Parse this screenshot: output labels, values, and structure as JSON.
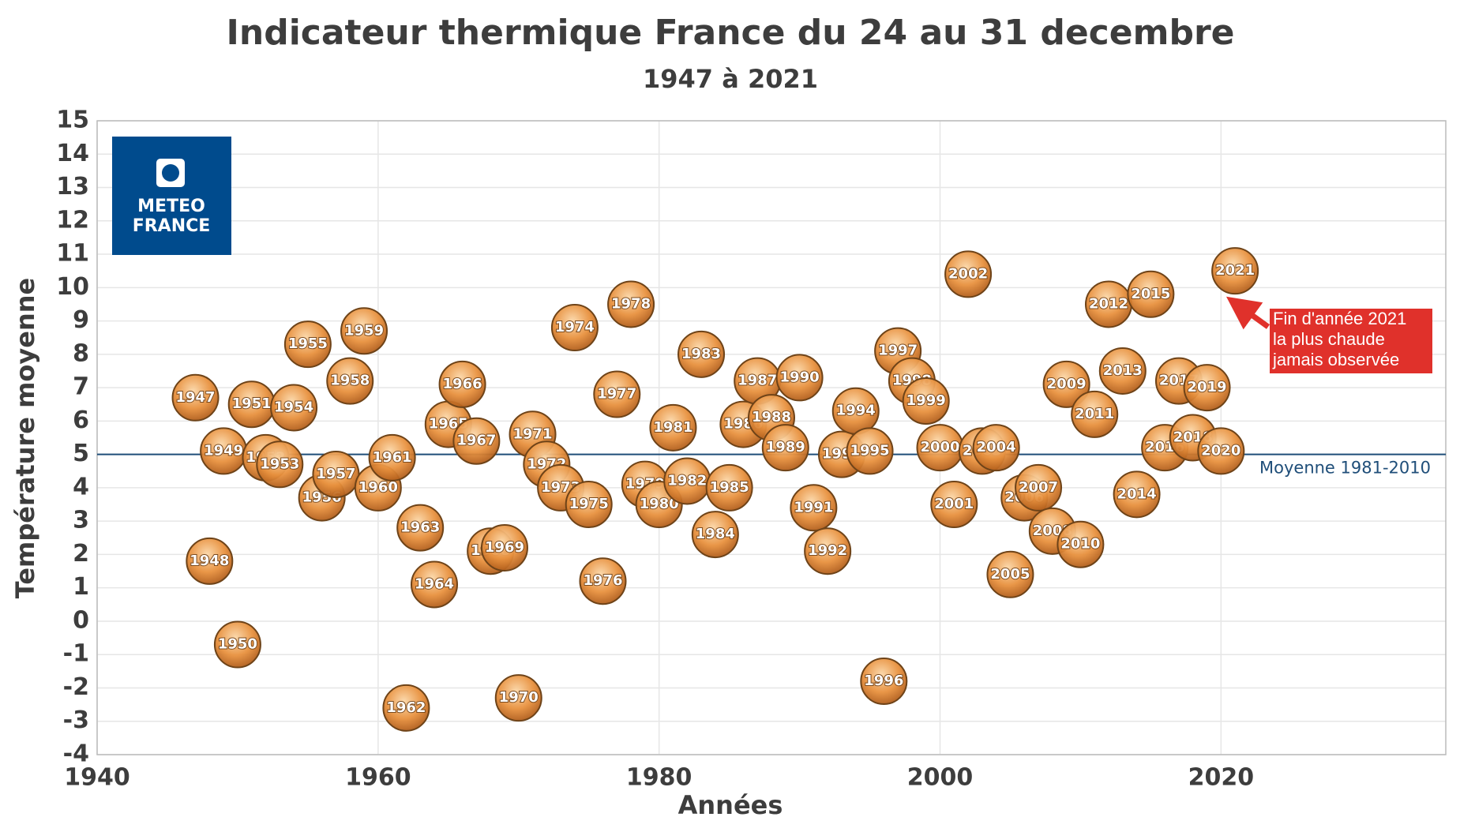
{
  "chart_data": {
    "type": "bubble",
    "title": "Indicateur thermique France du 24 au 31 decembre",
    "subtitle": "1947 à 2021",
    "x_label": "Années",
    "y_label": "Température moyenne",
    "x": [
      1947,
      1948,
      1949,
      1950,
      1951,
      1952,
      1953,
      1954,
      1955,
      1956,
      1957,
      1958,
      1959,
      1960,
      1961,
      1962,
      1963,
      1964,
      1965,
      1966,
      1967,
      1968,
      1969,
      1970,
      1971,
      1972,
      1973,
      1974,
      1975,
      1976,
      1977,
      1978,
      1979,
      1980,
      1981,
      1982,
      1983,
      1984,
      1985,
      1986,
      1987,
      1988,
      1989,
      1990,
      1991,
      1992,
      1993,
      1994,
      1995,
      1996,
      1997,
      1998,
      1999,
      2000,
      2001,
      2002,
      2003,
      2004,
      2005,
      2006,
      2007,
      2008,
      2009,
      2010,
      2011,
      2012,
      2013,
      2014,
      2015,
      2016,
      2017,
      2018,
      2019,
      2020,
      2021
    ],
    "values": [
      6.7,
      1.8,
      5.1,
      -0.7,
      6.5,
      4.9,
      4.7,
      6.4,
      8.3,
      3.7,
      4.4,
      7.2,
      8.7,
      4.0,
      4.9,
      -2.6,
      2.8,
      1.1,
      5.9,
      7.1,
      5.4,
      2.1,
      2.2,
      -2.3,
      5.6,
      4.7,
      4.0,
      8.8,
      3.5,
      1.2,
      6.8,
      9.5,
      4.1,
      3.5,
      5.8,
      4.2,
      8.0,
      2.6,
      4.0,
      5.9,
      7.2,
      6.1,
      5.2,
      7.3,
      3.4,
      2.1,
      5.0,
      6.3,
      5.1,
      -1.8,
      8.1,
      7.2,
      6.6,
      5.2,
      3.5,
      10.4,
      5.1,
      5.2,
      1.4,
      3.7,
      4.0,
      2.7,
      7.1,
      2.3,
      6.2,
      9.5,
      7.5,
      3.8,
      9.8,
      5.2,
      7.2,
      5.5,
      7.0,
      5.1,
      10.5
    ],
    "color": "#e08a3c",
    "xlim": [
      1940,
      2036
    ],
    "xticks": [
      1940,
      1960,
      1980,
      2000,
      2020
    ],
    "ylim": [
      -4,
      15
    ],
    "yticks": [
      -4,
      -3,
      -2,
      -1,
      0,
      1,
      2,
      3,
      4,
      5,
      6,
      7,
      8,
      9,
      10,
      11,
      12,
      13,
      14,
      15
    ],
    "grid": true,
    "mean": {
      "label": "Moyenne 1981-2010",
      "value": 5.0,
      "color": "#1f4e79"
    },
    "annotation": [
      "Fin d'année 2021",
      "la plus chaude",
      "jamais observée"
    ],
    "logo": [
      "METEO",
      "FRANCE"
    ]
  }
}
